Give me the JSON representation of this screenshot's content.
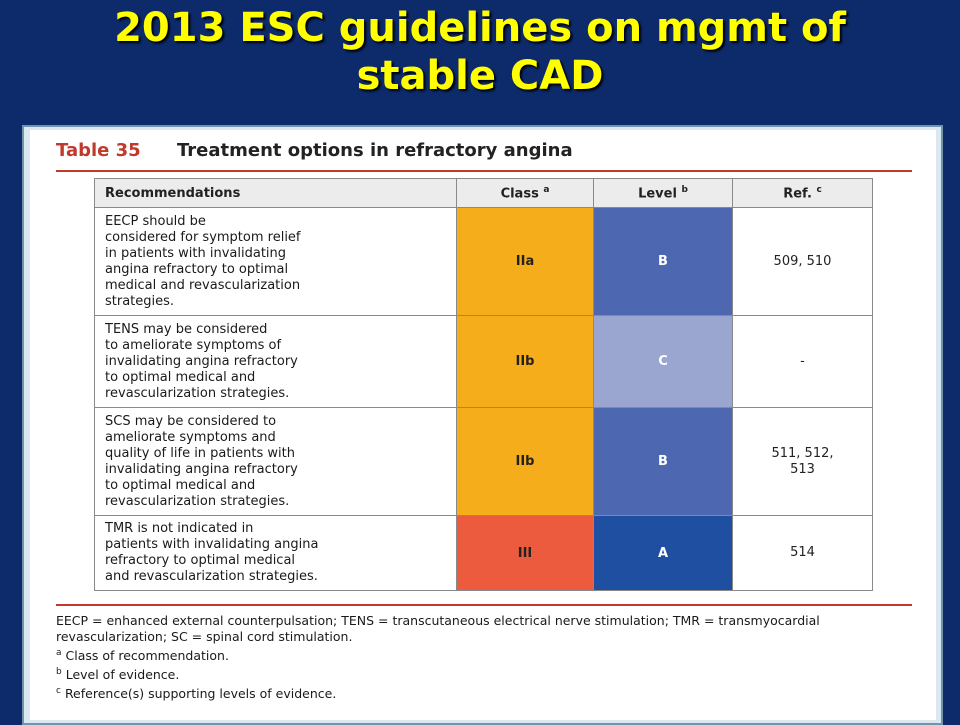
{
  "slide": {
    "title_line1": "2013 ESC guidelines on mgmt of",
    "title_line2": "stable CAD"
  },
  "table": {
    "caption_number": "Table 35",
    "caption_text": "Treatment options in refractory angina",
    "headers": {
      "recommendations": "Recommendations",
      "class": "Class",
      "class_sup": "a",
      "level": "Level",
      "level_sup": "b",
      "ref": "Ref.",
      "ref_sup": "c"
    },
    "rows": [
      {
        "text": "EECP should be\nconsidered for symptom relief\nin patients with invalidating\nangina refractory to optimal\nmedical and revascularization\nstrategies.",
        "class": "IIa",
        "level": "B",
        "ref": "509, 510",
        "class_color": "#f6ad1c",
        "level_color": "#4d68b0"
      },
      {
        "text": "TENS may be considered\nto ameliorate symptoms of\ninvalidating angina refractory\nto optimal medical and\nrevascularization strategies.",
        "class": "IIb",
        "level": "C",
        "ref": "-",
        "class_color": "#f6ad1c",
        "level_color": "#9aa5d0"
      },
      {
        "text": "SCS may be considered to\nameliorate symptoms and\nquality of life in patients with\ninvalidating angina refractory\nto optimal medical and\nrevascularization strategies.",
        "class": "IIb",
        "level": "B",
        "ref": "511, 512,\n513",
        "class_color": "#f6ad1c",
        "level_color": "#4d68b0"
      },
      {
        "text": "TMR is not indicated in\npatients with invalidating angina\nrefractory to optimal medical\nand revascularization strategies.",
        "class": "III",
        "level": "A",
        "ref": "514",
        "class_color": "#ec5b3d",
        "level_color": "#1f4fa0"
      }
    ]
  },
  "footnotes": {
    "abbreviations": "EECP = enhanced external counterpulsation; TENS = transcutaneous electrical nerve stimulation; TMR = transmyocardial revascularization; SC = spinal cord stimulation.",
    "note_a_mark": "a",
    "note_a": "Class of recommendation.",
    "note_b_mark": "b",
    "note_b": "Level of evidence.",
    "note_c_mark": "c",
    "note_c": "Reference(s) supporting levels of evidence."
  }
}
